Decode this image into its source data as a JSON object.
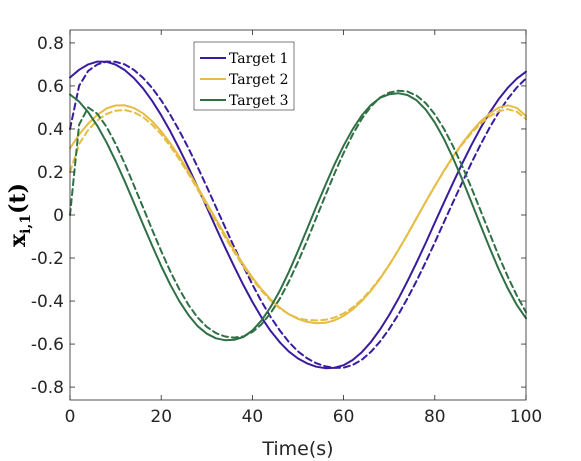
{
  "chart_data": {
    "type": "line",
    "xlabel": "Time(s)",
    "ylabel": "x_{i,1}(t)",
    "ylabel_parts": {
      "base": "x",
      "sub": "i,1",
      "arg": "(t)"
    },
    "xlim": [
      0,
      100
    ],
    "ylim": [
      -0.86,
      0.86
    ],
    "xticks": [
      0,
      20,
      40,
      60,
      80,
      100
    ],
    "xtick_labels": [
      "0",
      "20",
      "40",
      "60",
      "80",
      "100"
    ],
    "yticks": [
      -0.8,
      -0.6,
      -0.4,
      -0.2,
      0,
      0.2,
      0.4,
      0.6,
      0.8
    ],
    "ytick_labels": [
      "-0.8",
      "-0.6",
      "-0.4",
      "-0.2",
      "0",
      "0.2",
      "0.4",
      "0.6",
      "0.8"
    ],
    "grid": false,
    "legend_position": "top-left",
    "x": [
      0,
      2,
      4,
      6,
      8,
      10,
      12,
      14,
      16,
      18,
      20,
      22,
      24,
      26,
      28,
      30,
      32,
      34,
      36,
      38,
      40,
      42,
      44,
      46,
      48,
      50,
      52,
      54,
      56,
      58,
      60,
      62,
      64,
      66,
      68,
      70,
      72,
      74,
      76,
      78,
      80,
      82,
      84,
      86,
      88,
      90,
      92,
      94,
      96,
      98,
      100
    ],
    "series": [
      {
        "name": "Target 1",
        "color": "#3a1ba0",
        "style": "solid",
        "values": [
          0.639,
          0.675,
          0.7,
          0.713,
          0.712,
          0.699,
          0.674,
          0.637,
          0.589,
          0.531,
          0.464,
          0.389,
          0.307,
          0.22,
          0.129,
          0.036,
          -0.058,
          -0.15,
          -0.24,
          -0.325,
          -0.404,
          -0.476,
          -0.539,
          -0.592,
          -0.635,
          -0.667,
          -0.69,
          -0.705,
          -0.712,
          -0.71,
          -0.698,
          -0.674,
          -0.638,
          -0.59,
          -0.532,
          -0.465,
          -0.39,
          -0.308,
          -0.221,
          -0.13,
          -0.036,
          0.057,
          0.149,
          0.239,
          0.324,
          0.403,
          0.475,
          0.538,
          0.592,
          0.634,
          0.666
        ]
      },
      {
        "name": "",
        "color": "#3a1ba0",
        "style": "dashed",
        "values": [
          0.4,
          0.6,
          0.67,
          0.7,
          0.713,
          0.712,
          0.7,
          0.675,
          0.638,
          0.591,
          0.533,
          0.466,
          0.391,
          0.309,
          0.222,
          0.131,
          0.037,
          -0.056,
          -0.149,
          -0.238,
          -0.323,
          -0.402,
          -0.474,
          -0.537,
          -0.591,
          -0.634,
          -0.666,
          -0.689,
          -0.704,
          -0.711,
          -0.71,
          -0.697,
          -0.673,
          -0.636,
          -0.588,
          -0.53,
          -0.463,
          -0.388,
          -0.306,
          -0.219,
          -0.128,
          -0.034,
          0.059,
          0.151,
          0.241,
          0.326,
          0.405,
          0.477,
          0.54,
          0.593,
          0.635
        ]
      },
      {
        "name": "Target 2",
        "color": "#e5bd45",
        "style": "solid",
        "values": [
          0.31,
          0.374,
          0.425,
          0.466,
          0.495,
          0.509,
          0.51,
          0.498,
          0.473,
          0.436,
          0.389,
          0.333,
          0.27,
          0.201,
          0.129,
          0.055,
          -0.019,
          -0.092,
          -0.163,
          -0.229,
          -0.29,
          -0.345,
          -0.392,
          -0.431,
          -0.461,
          -0.483,
          -0.497,
          -0.503,
          -0.501,
          -0.49,
          -0.469,
          -0.439,
          -0.4,
          -0.352,
          -0.296,
          -0.233,
          -0.164,
          -0.091,
          -0.015,
          0.061,
          0.135,
          0.206,
          0.272,
          0.333,
          0.387,
          0.434,
          0.471,
          0.499,
          0.51,
          0.498,
          0.46
        ]
      },
      {
        "name": "",
        "color": "#e5bd45",
        "style": "dashed",
        "values": [
          0.2,
          0.33,
          0.395,
          0.44,
          0.47,
          0.485,
          0.488,
          0.478,
          0.455,
          0.42,
          0.375,
          0.32,
          0.258,
          0.19,
          0.118,
          0.044,
          -0.03,
          -0.103,
          -0.173,
          -0.239,
          -0.299,
          -0.352,
          -0.397,
          -0.434,
          -0.462,
          -0.48,
          -0.488,
          -0.49,
          -0.487,
          -0.477,
          -0.458,
          -0.43,
          -0.393,
          -0.347,
          -0.293,
          -0.231,
          -0.163,
          -0.09,
          -0.014,
          0.061,
          0.134,
          0.204,
          0.269,
          0.328,
          0.38,
          0.424,
          0.458,
          0.482,
          0.492,
          0.48,
          0.446
        ]
      },
      {
        "name": "Target 3",
        "color": "#2f7045",
        "style": "solid",
        "values": [
          0.56,
          0.527,
          0.478,
          0.414,
          0.338,
          0.251,
          0.157,
          0.058,
          -0.043,
          -0.142,
          -0.237,
          -0.324,
          -0.401,
          -0.466,
          -0.517,
          -0.552,
          -0.573,
          -0.582,
          -0.58,
          -0.567,
          -0.537,
          -0.49,
          -0.428,
          -0.352,
          -0.264,
          -0.167,
          -0.065,
          0.038,
          0.139,
          0.235,
          0.322,
          0.399,
          0.463,
          0.512,
          0.545,
          0.561,
          0.566,
          0.558,
          0.533,
          0.49,
          0.43,
          0.354,
          0.265,
          0.166,
          0.061,
          -0.046,
          -0.151,
          -0.251,
          -0.341,
          -0.419,
          -0.48
        ]
      },
      {
        "name": "",
        "color": "#2f7045",
        "style": "dashed",
        "values": [
          0.0,
          0.42,
          0.5,
          0.47,
          0.41,
          0.331,
          0.239,
          0.139,
          0.036,
          -0.068,
          -0.168,
          -0.262,
          -0.346,
          -0.419,
          -0.477,
          -0.52,
          -0.549,
          -0.565,
          -0.57,
          -0.565,
          -0.544,
          -0.508,
          -0.456,
          -0.389,
          -0.309,
          -0.218,
          -0.119,
          -0.014,
          0.091,
          0.193,
          0.288,
          0.374,
          0.447,
          0.505,
          0.546,
          0.569,
          0.578,
          0.574,
          0.555,
          0.52,
          0.468,
          0.401,
          0.32,
          0.228,
          0.128,
          0.023,
          -0.084,
          -0.189,
          -0.287,
          -0.375,
          -0.452
        ]
      }
    ]
  }
}
